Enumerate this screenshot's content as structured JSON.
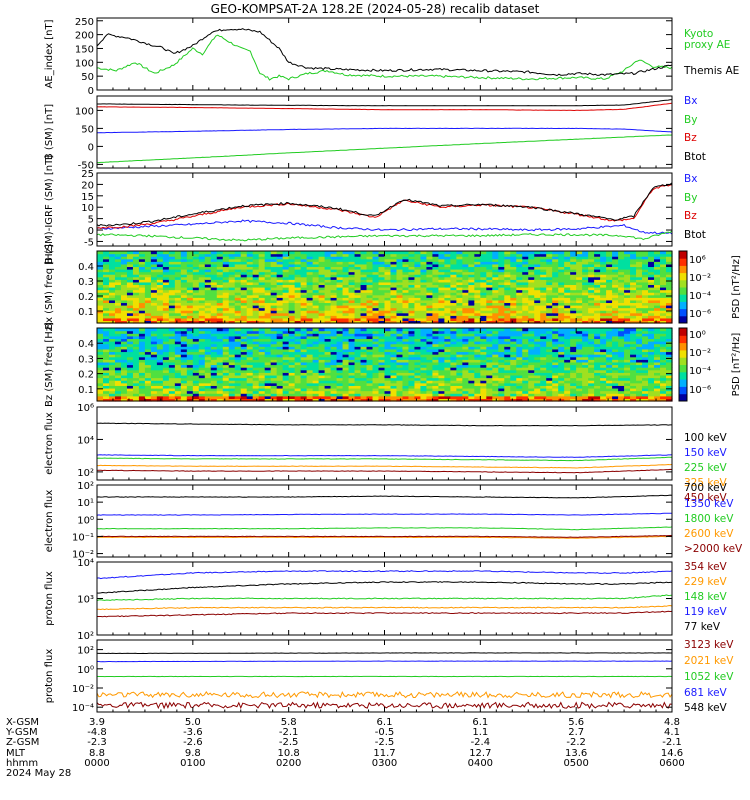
{
  "title": "GEO-KOMPSAT-2A 128.2E (2024-05-28) recalib dataset",
  "colors": {
    "black": "#000000",
    "blue": "#1a1aff",
    "green": "#22cc22",
    "red": "#dd0000",
    "orange": "#ff9900",
    "darkred": "#8b0000",
    "lightgreen": "#33dd33"
  },
  "chart_data": [
    {
      "type": "line",
      "id": "ae",
      "ylabel": "AE_index [nT]",
      "ylim": [
        0,
        260
      ],
      "yticks": [
        "0",
        "50",
        "100",
        "150",
        "200",
        "250"
      ],
      "yticks_values": [
        0,
        50,
        100,
        150,
        200,
        250
      ],
      "x_hours": [
        0,
        6
      ],
      "series": [
        {
          "name": "Kyoto proxy AE",
          "color": "#22cc22",
          "x": [
            0,
            0.2,
            0.4,
            0.6,
            0.8,
            1.0,
            1.1,
            1.25,
            1.4,
            1.5,
            1.6,
            1.7,
            1.8,
            1.9,
            2.0,
            2.2,
            2.4,
            2.6,
            3.0,
            3.5,
            4.0,
            4.5,
            5.0,
            5.3,
            5.5,
            5.65,
            5.8,
            6.0
          ],
          "y": [
            80,
            70,
            100,
            60,
            90,
            150,
            130,
            200,
            170,
            150,
            140,
            60,
            40,
            50,
            40,
            60,
            70,
            55,
            50,
            50,
            45,
            40,
            45,
            40,
            70,
            110,
            85,
            80
          ]
        },
        {
          "name": "Themis AE",
          "color": "#000000",
          "x": [
            0,
            0.1,
            0.3,
            0.5,
            0.7,
            0.8,
            1.0,
            1.2,
            1.35,
            1.5,
            1.7,
            1.9,
            2.0,
            2.2,
            2.5,
            3.0,
            3.5,
            4.0,
            4.5,
            4.8,
            5.0,
            5.3,
            5.6,
            5.8,
            6.0
          ],
          "y": [
            160,
            200,
            190,
            170,
            150,
            130,
            160,
            210,
            220,
            220,
            210,
            150,
            100,
            80,
            75,
            70,
            75,
            70,
            65,
            55,
            60,
            55,
            60,
            75,
            90
          ]
        }
      ],
      "legend": [
        "Kyoto",
        "proxy AE",
        "Themis AE"
      ]
    },
    {
      "type": "line",
      "id": "bsm",
      "ylabel": "B (SM) [nT]",
      "ylim": [
        -60,
        140
      ],
      "yticks": [
        "-50",
        "0",
        "50",
        "100"
      ],
      "yticks_values": [
        -50,
        0,
        50,
        100
      ],
      "series": [
        {
          "name": "Bx",
          "color": "#1a1aff",
          "x": [
            0,
            1,
            2,
            3,
            4,
            5,
            5.5,
            6
          ],
          "y": [
            38,
            42,
            47,
            50,
            50,
            50,
            48,
            40
          ]
        },
        {
          "name": "By",
          "color": "#22cc22",
          "x": [
            0,
            1,
            2,
            3,
            4,
            5,
            6
          ],
          "y": [
            -45,
            -32,
            -18,
            -5,
            8,
            20,
            32
          ]
        },
        {
          "name": "Bz",
          "color": "#dd0000",
          "x": [
            0,
            1,
            2,
            3,
            4,
            5,
            5.5,
            6
          ],
          "y": [
            110,
            108,
            105,
            102,
            102,
            100,
            103,
            120
          ]
        },
        {
          "name": "Btot",
          "color": "#000000",
          "x": [
            0,
            1,
            2,
            3,
            4,
            5,
            5.5,
            6
          ],
          "y": [
            118,
            116,
            114,
            113,
            113,
            113,
            115,
            130
          ]
        }
      ],
      "legend": [
        "Bx",
        "By",
        "Bz",
        "Btot"
      ]
    },
    {
      "type": "line",
      "id": "bdiff",
      "ylabel": "B (SM)-IGRF (SM) [nT]",
      "ylim": [
        -7,
        25
      ],
      "yticks": [
        "-5",
        "0",
        "5",
        "10",
        "15",
        "20",
        "25"
      ],
      "yticks_values": [
        -5,
        0,
        5,
        10,
        15,
        20,
        25
      ],
      "series": [
        {
          "name": "Bx",
          "color": "#1a1aff",
          "x": [
            0,
            0.5,
            1,
            1.5,
            2,
            2.5,
            3,
            3.5,
            4,
            4.5,
            5,
            5.5,
            5.7,
            6
          ],
          "y": [
            0.5,
            1.5,
            2.5,
            4,
            3,
            1,
            0,
            0.5,
            0.5,
            0,
            0.5,
            2,
            -1,
            -1.5
          ]
        },
        {
          "name": "By",
          "color": "#22cc22",
          "x": [
            0,
            0.5,
            1,
            1.5,
            2,
            2.5,
            3,
            3.5,
            4,
            4.5,
            5,
            5.5,
            5.7,
            6
          ],
          "y": [
            -2,
            -2.5,
            -3.5,
            -4.5,
            -3.5,
            -3,
            -2.5,
            -2.5,
            -2.5,
            -2,
            -2,
            -2.5,
            -4,
            -0.5
          ]
        },
        {
          "name": "Bz",
          "color": "#dd0000",
          "x": [
            0,
            0.3,
            0.6,
            1,
            1.5,
            2,
            2.5,
            2.9,
            3.2,
            3.6,
            4,
            4.5,
            5,
            5.4,
            5.6,
            5.8,
            6
          ],
          "y": [
            1,
            1.5,
            3,
            6,
            10,
            11.5,
            9,
            5.5,
            13,
            10,
            11,
            10,
            7,
            4,
            5,
            18,
            20
          ]
        },
        {
          "name": "Btot",
          "color": "#000000",
          "x": [
            0,
            0.3,
            0.6,
            1,
            1.5,
            2,
            2.5,
            2.9,
            3.2,
            3.6,
            4,
            4.5,
            5,
            5.4,
            5.6,
            5.8,
            6
          ],
          "y": [
            2,
            2.5,
            4,
            7,
            10.5,
            11.8,
            9.5,
            6,
            13.5,
            10.5,
            11.2,
            10.2,
            7.2,
            4.5,
            6,
            18.5,
            20.5
          ]
        }
      ],
      "legend": [
        "Bx",
        "By",
        "Bz",
        "Btot"
      ]
    },
    {
      "type": "heatmap",
      "id": "bx_spec",
      "ylabel": "Bx (SM) freq [Hz]",
      "ylim": [
        0.02,
        0.5
      ],
      "yticks": [
        "0.1",
        "0.2",
        "0.3",
        "0.4"
      ],
      "yticks_values": [
        0.1,
        0.2,
        0.3,
        0.4
      ],
      "colorbar": {
        "label": "PSD [nT²/Hz]",
        "ticks": [
          "10⁰",
          "10⁻²",
          "10⁻⁴",
          "10⁻⁶"
        ],
        "top_tick": "10⁶",
        "range_log": [
          -8,
          6
        ]
      }
    },
    {
      "type": "heatmap",
      "id": "bz_spec",
      "ylabel": "Bz (SM) freq [Hz]",
      "ylim": [
        0.02,
        0.5
      ],
      "yticks": [
        "0.1",
        "0.2",
        "0.3",
        "0.4"
      ],
      "yticks_values": [
        0.1,
        0.2,
        0.3,
        0.4
      ],
      "colorbar": {
        "label": "PSD [nT²/Hz]",
        "ticks": [
          "10⁰",
          "10⁻²",
          "10⁻⁴",
          "10⁻⁶"
        ],
        "range_log": [
          -6,
          2
        ]
      }
    },
    {
      "type": "line",
      "id": "elec1",
      "log": true,
      "ylabel": "electron flux",
      "ylim_log": [
        1.5,
        6
      ],
      "yticks": [
        "10²",
        "10⁴",
        "10⁶"
      ],
      "yticks_log": [
        2,
        4,
        6
      ],
      "series": [
        {
          "name": "100 keV",
          "color": "#000000",
          "x": [
            0,
            1,
            2,
            3,
            4,
            5,
            6
          ],
          "y_log": [
            5.0,
            4.95,
            4.9,
            4.9,
            4.85,
            4.85,
            4.9
          ]
        },
        {
          "name": "150 keV",
          "color": "#1a1aff",
          "x": [
            0,
            1,
            2,
            3,
            4,
            5,
            6
          ],
          "y_log": [
            3.05,
            3.0,
            3.0,
            3.0,
            2.95,
            2.9,
            3.05
          ]
        },
        {
          "name": "225 keV",
          "color": "#22cc22",
          "x": [
            0,
            1,
            2,
            3,
            4,
            5,
            6
          ],
          "y_log": [
            2.85,
            2.8,
            2.8,
            2.8,
            2.75,
            2.7,
            2.9
          ]
        },
        {
          "name": "325 keV",
          "color": "#ff9900",
          "x": [
            0,
            1,
            2,
            3,
            4,
            5,
            6
          ],
          "y_log": [
            2.4,
            2.35,
            2.35,
            2.35,
            2.3,
            2.25,
            2.45
          ]
        },
        {
          "name": "450 keV",
          "color": "#8b0000",
          "x": [
            0,
            1,
            2,
            3,
            4,
            5,
            6
          ],
          "y_log": [
            2.1,
            2.05,
            2.05,
            2.05,
            2.0,
            1.95,
            2.15
          ]
        }
      ],
      "legend": [
        "100 keV",
        "150 keV",
        "225 keV",
        "325 keV",
        "450 keV"
      ]
    },
    {
      "type": "line",
      "id": "elec2",
      "log": true,
      "ylabel": "electron flux",
      "ylim_log": [
        -2.2,
        2
      ],
      "yticks": [
        "10⁻²",
        "10⁻¹",
        "10⁰",
        "10¹",
        "10²"
      ],
      "yticks_log": [
        -2,
        -1,
        0,
        1,
        2
      ],
      "series": [
        {
          "name": "700 keV",
          "color": "#000000",
          "x": [
            0,
            1,
            2,
            3,
            4,
            5,
            6
          ],
          "y_log": [
            1.3,
            1.3,
            1.3,
            1.35,
            1.3,
            1.25,
            1.4
          ]
        },
        {
          "name": "1350 keV",
          "color": "#1a1aff",
          "x": [
            0,
            1,
            2,
            3,
            4,
            5,
            6
          ],
          "y_log": [
            0.25,
            0.25,
            0.28,
            0.3,
            0.3,
            0.25,
            0.35
          ]
        },
        {
          "name": "1800 keV",
          "color": "#22cc22",
          "x": [
            0,
            1,
            2,
            3,
            4,
            5,
            6
          ],
          "y_log": [
            -0.55,
            -0.55,
            -0.55,
            -0.5,
            -0.5,
            -0.6,
            -0.45
          ]
        },
        {
          "name": "2600 keV",
          "color": "#ff9900",
          "x": [
            0,
            1,
            2,
            3,
            4,
            5,
            6
          ],
          "y_log": [
            -1.05,
            -1.05,
            -1.05,
            -1.05,
            -1.05,
            -1.1,
            -1.0
          ]
        },
        {
          "name": ">2000 keV",
          "color": "#8b0000",
          "x": [
            0,
            1,
            2,
            3,
            4,
            5,
            6
          ],
          "y_log": [
            -1.0,
            -1.0,
            -1.0,
            -1.0,
            -1.0,
            -1.05,
            -0.95
          ]
        }
      ],
      "legend": [
        "700 keV",
        "1350 keV",
        "1800 keV",
        "2600 keV",
        ">2000 keV"
      ]
    },
    {
      "type": "line",
      "id": "prot1",
      "log": true,
      "ylabel": "proton flux",
      "ylim_log": [
        2,
        4
      ],
      "yticks": [
        "10²",
        "10³",
        "10⁴"
      ],
      "yticks_log": [
        2,
        3,
        4
      ],
      "series": [
        {
          "name": "354 keV",
          "color": "#8b0000",
          "x": [
            0,
            1,
            2,
            3,
            4,
            5,
            5.5,
            6
          ],
          "y_log": [
            2.5,
            2.55,
            2.6,
            2.6,
            2.6,
            2.6,
            2.6,
            2.65
          ]
        },
        {
          "name": "229 keV",
          "color": "#ff9900",
          "x": [
            0,
            1,
            2,
            3,
            4,
            5,
            5.5,
            6
          ],
          "y_log": [
            2.7,
            2.75,
            2.75,
            2.75,
            2.75,
            2.75,
            2.75,
            2.8
          ]
        },
        {
          "name": "148 keV",
          "color": "#22cc22",
          "x": [
            0,
            1,
            2,
            3,
            4,
            5,
            5.5,
            6
          ],
          "y_log": [
            2.95,
            3.0,
            3.0,
            3.0,
            3.0,
            3.0,
            3.0,
            3.1
          ]
        },
        {
          "name": "119 keV",
          "color": "#1a1aff",
          "x": [
            0,
            1,
            2,
            3,
            4,
            5,
            5.5,
            6
          ],
          "y_log": [
            3.55,
            3.7,
            3.75,
            3.75,
            3.75,
            3.7,
            3.7,
            3.75
          ]
        },
        {
          "name": "77 keV",
          "color": "#000000",
          "x": [
            0,
            1,
            2,
            3,
            4,
            5,
            5.5,
            6
          ],
          "y_log": [
            3.15,
            3.3,
            3.4,
            3.45,
            3.45,
            3.4,
            3.4,
            3.45
          ]
        }
      ],
      "legend": [
        "354 keV",
        "229 keV",
        "148 keV",
        "119 keV",
        "77 keV"
      ]
    },
    {
      "type": "line",
      "id": "prot2",
      "log": true,
      "ylabel": "proton flux",
      "ylim_log": [
        -4.5,
        3
      ],
      "yticks": [
        "10⁻⁴",
        "10⁻²",
        "10⁰",
        "10²"
      ],
      "yticks_log": [
        -4,
        -2,
        0,
        2
      ],
      "series": [
        {
          "name": "3123 keV",
          "color": "#8b0000",
          "noise": 0.6,
          "x": [
            0,
            3,
            6
          ],
          "y_log": [
            -3.8,
            -3.8,
            -3.8
          ]
        },
        {
          "name": "2021 keV",
          "color": "#ff9900",
          "noise": 0.6,
          "x": [
            0,
            3,
            6
          ],
          "y_log": [
            -2.7,
            -2.7,
            -2.7
          ]
        },
        {
          "name": "1052 keV",
          "color": "#22cc22",
          "x": [
            0,
            3,
            6
          ],
          "y_log": [
            -0.8,
            -0.8,
            -0.8
          ]
        },
        {
          "name": "681 keV",
          "color": "#1a1aff",
          "x": [
            0,
            3,
            6
          ],
          "y_log": [
            0.75,
            0.8,
            0.8
          ]
        },
        {
          "name": "548 keV",
          "color": "#000000",
          "x": [
            0,
            3,
            6
          ],
          "y_log": [
            1.6,
            1.65,
            1.65
          ]
        }
      ],
      "legend": [
        "3123 keV",
        "2021 keV",
        "1052 keV",
        "681 keV",
        "548 keV"
      ]
    }
  ],
  "orbit_table": {
    "row_labels": [
      "X-GSM",
      "Y-GSM",
      "Z-GSM",
      "MLT",
      "hhmm"
    ],
    "date_label": "2024 May 28",
    "columns": [
      [
        "3.9",
        "-4.8",
        "-2.3",
        "8.8",
        "0000"
      ],
      [
        "5.0",
        "-3.6",
        "-2.6",
        "9.8",
        "0100"
      ],
      [
        "5.8",
        "-2.1",
        "-2.5",
        "10.8",
        "0200"
      ],
      [
        "6.1",
        "-0.5",
        "-2.5",
        "11.7",
        "0300"
      ],
      [
        "6.1",
        "1.1",
        "-2.4",
        "12.7",
        "0400"
      ],
      [
        "5.6",
        "2.7",
        "-2.2",
        "13.6",
        "0500"
      ],
      [
        "4.8",
        "4.1",
        "-2.1",
        "14.6",
        "0600"
      ]
    ]
  }
}
